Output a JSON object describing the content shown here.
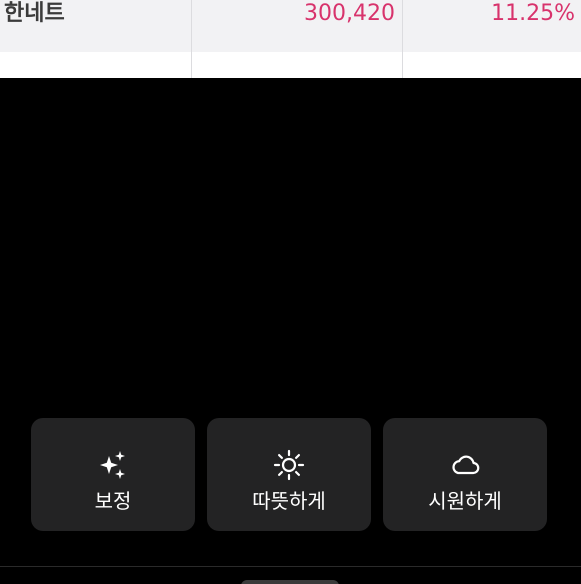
{
  "photo": {
    "table": {
      "row": {
        "name": "한네트",
        "value": "300,420",
        "rate": "11.25%"
      }
    }
  },
  "filters": [
    {
      "label": "보정",
      "icon": "sparkle-icon"
    },
    {
      "label": "따뜻하게",
      "icon": "sun-icon"
    },
    {
      "label": "시원하게",
      "icon": "cloud-icon"
    }
  ],
  "colors": {
    "background": "#000000",
    "button": "#232324",
    "accent_pink": "#d8336c",
    "text": "#ffffff"
  }
}
